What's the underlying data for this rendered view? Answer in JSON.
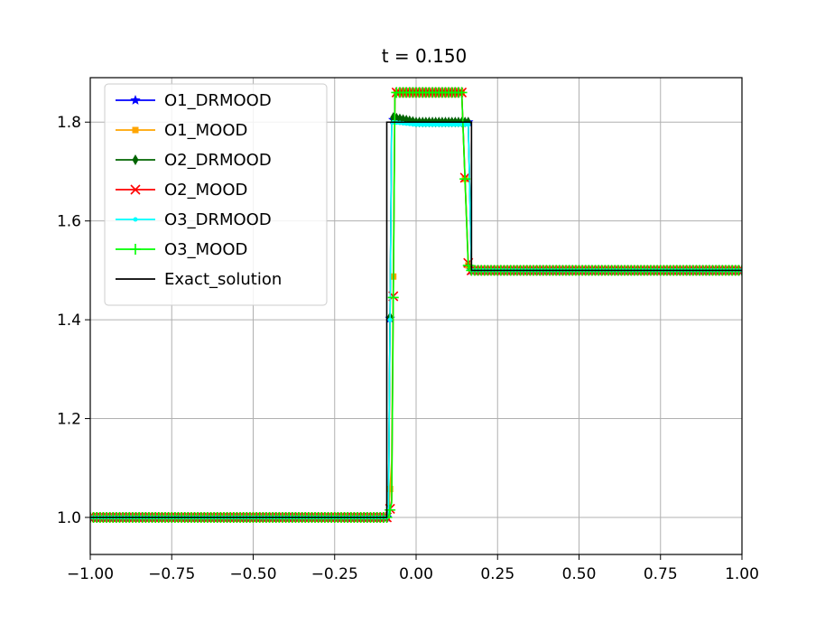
{
  "chart_data": {
    "type": "line",
    "title": "t = 0.150",
    "xlabel": "",
    "ylabel": "",
    "xlim": [
      -1.0,
      1.0
    ],
    "ylim": [
      0.925,
      1.89
    ],
    "grid": true,
    "legend_position": "upper-left",
    "x_ticks": [
      -1.0,
      -0.75,
      -0.5,
      -0.25,
      0.0,
      0.25,
      0.5,
      0.75,
      1.0
    ],
    "x_tick_labels": [
      "−1.00",
      "−0.75",
      "−0.50",
      "−0.25",
      "0.00",
      "0.25",
      "0.50",
      "0.75",
      "1.00"
    ],
    "y_ticks": [
      1.0,
      1.2,
      1.4,
      1.6,
      1.8
    ],
    "y_tick_labels": [
      "1.0",
      "1.2",
      "1.4",
      "1.6",
      "1.8"
    ],
    "series": [
      {
        "name": "O1_DRMOOD",
        "color": "#0000ff",
        "marker": "star",
        "x": [
          -1.0,
          -0.085,
          -0.075,
          0.0,
          0.16,
          0.17,
          1.0
        ],
        "y": [
          1.0,
          1.0,
          1.805,
          1.8,
          1.8,
          1.5,
          1.5
        ]
      },
      {
        "name": "O1_MOOD",
        "color": "#ffa500",
        "marker": "square",
        "x": [
          -1.0,
          -0.085,
          -0.075,
          -0.065,
          0.0,
          0.14,
          0.16,
          0.17,
          1.0
        ],
        "y": [
          1.0,
          1.0,
          1.115,
          1.86,
          1.86,
          1.86,
          1.51,
          1.5,
          1.5
        ]
      },
      {
        "name": "O2_DRMOOD",
        "color": "#006400",
        "marker": "diamond",
        "x": [
          -1.0,
          -0.085,
          -0.075,
          0.0,
          0.16,
          0.17,
          1.0
        ],
        "y": [
          1.0,
          1.0,
          1.81,
          1.8,
          1.8,
          1.5,
          1.5
        ]
      },
      {
        "name": "O2_MOOD",
        "color": "#ff0000",
        "marker": "x",
        "x": [
          -1.0,
          -0.085,
          -0.075,
          -0.065,
          0.0,
          0.14,
          0.16,
          0.17,
          1.0
        ],
        "y": [
          1.0,
          1.0,
          1.035,
          1.86,
          1.86,
          1.86,
          1.515,
          1.5,
          1.5
        ]
      },
      {
        "name": "O3_DRMOOD",
        "color": "#00ffff",
        "marker": "dot",
        "x": [
          -1.0,
          -0.085,
          -0.075,
          0.0,
          0.16,
          0.17,
          1.0
        ],
        "y": [
          1.0,
          1.0,
          1.8,
          1.795,
          1.795,
          1.5,
          1.5
        ]
      },
      {
        "name": "O3_MOOD",
        "color": "#00ff00",
        "marker": "plus",
        "x": [
          -1.0,
          -0.085,
          -0.075,
          -0.065,
          0.0,
          0.14,
          0.16,
          0.17,
          1.0
        ],
        "y": [
          1.0,
          1.0,
          1.03,
          1.86,
          1.86,
          1.86,
          1.51,
          1.5,
          1.5
        ]
      },
      {
        "name": "Exact_solution",
        "color": "#000000",
        "marker": "none",
        "x": [
          -1.0,
          -0.09,
          -0.09,
          0.17,
          0.17,
          1.0
        ],
        "y": [
          1.0,
          1.0,
          1.8,
          1.8,
          1.5,
          1.5
        ]
      }
    ]
  }
}
